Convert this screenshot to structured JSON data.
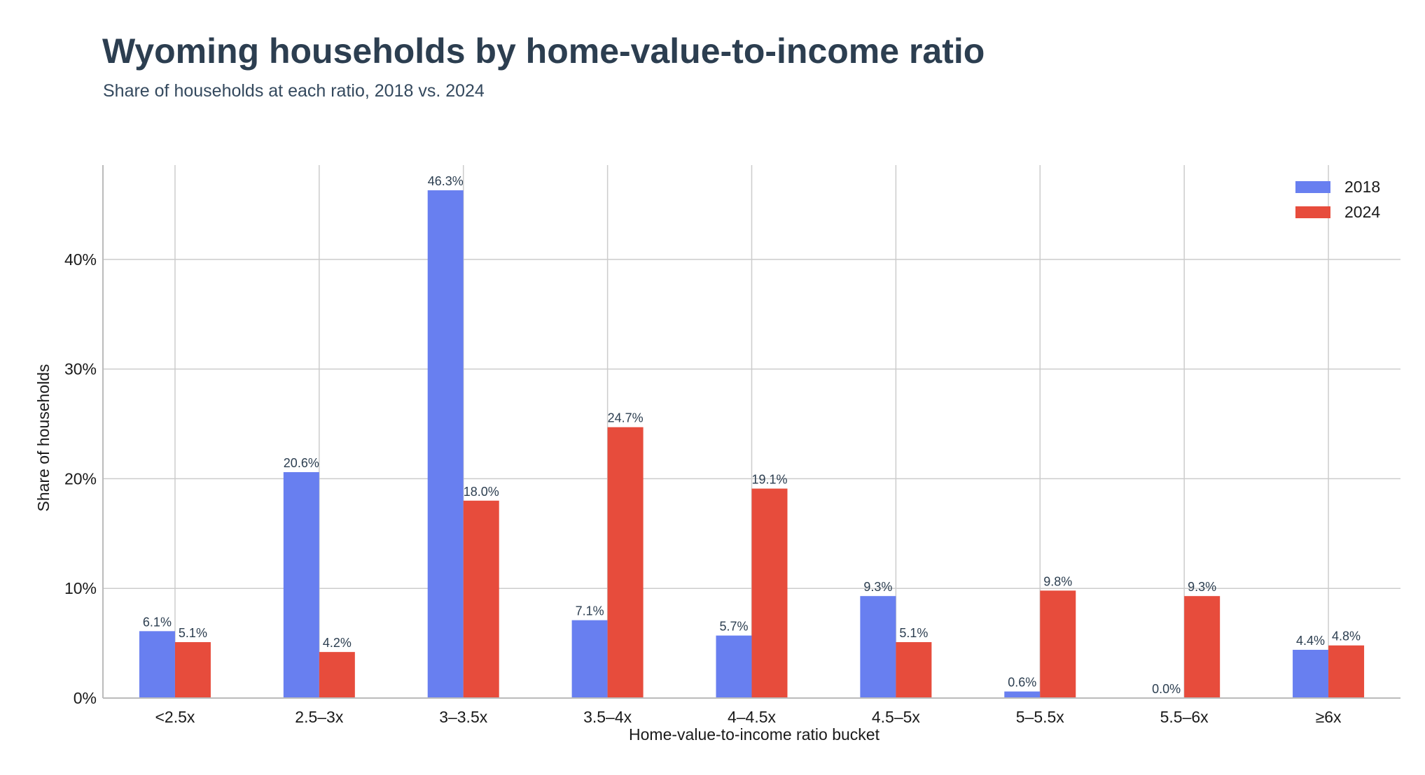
{
  "chart_data": {
    "type": "bar",
    "title": "Wyoming households by home-value-to-income ratio",
    "subtitle": "Share of households at each ratio, 2018 vs. 2024",
    "xlabel": "Home-value-to-income ratio bucket",
    "ylabel": "Share of households",
    "categories": [
      "<2.5x",
      "2.5–3x",
      "3–3.5x",
      "3.5–4x",
      "4–4.5x",
      "4.5–5x",
      "5–5.5x",
      "5.5–6x",
      "≥6x"
    ],
    "series": [
      {
        "name": "2018",
        "color": "#687ff0",
        "values": [
          6.1,
          20.6,
          46.3,
          7.1,
          5.7,
          9.3,
          0.6,
          0.0,
          4.4
        ],
        "labels": [
          "6.1%",
          "20.6%",
          "46.3%",
          "7.1%",
          "5.7%",
          "9.3%",
          "0.6%",
          "0.0%",
          "4.4%"
        ]
      },
      {
        "name": "2024",
        "color": "#e74c3c",
        "values": [
          5.1,
          4.2,
          18.0,
          24.7,
          19.1,
          5.1,
          9.8,
          9.3,
          4.8
        ],
        "labels": [
          "5.1%",
          "4.2%",
          "18.0%",
          "24.7%",
          "19.1%",
          "5.1%",
          "9.8%",
          "9.3%",
          "4.8%"
        ]
      }
    ],
    "yticks": [
      0,
      10,
      20,
      30,
      40
    ],
    "ytick_labels": [
      "0%",
      "10%",
      "20%",
      "30%",
      "40%"
    ],
    "ylim": [
      0,
      48.6
    ],
    "grid": true,
    "legend_position": "top-right"
  }
}
